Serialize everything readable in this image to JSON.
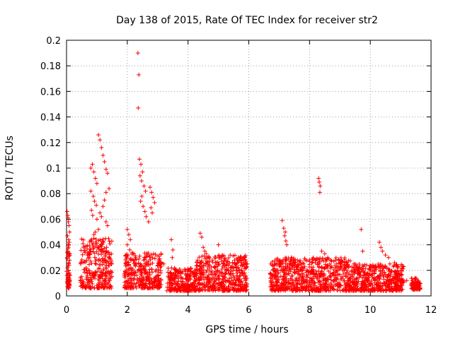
{
  "chart_data": {
    "type": "scatter",
    "title": "Day 138 of 2015, Rate Of TEC Index for receiver str2",
    "xlabel": "GPS time / hours",
    "ylabel": "ROTI / TECUs",
    "xlim": [
      0,
      12
    ],
    "ylim": [
      0,
      0.2
    ],
    "xticks": [
      0,
      2,
      4,
      6,
      8,
      10,
      12
    ],
    "yticks": [
      0,
      0.02,
      0.04,
      0.06,
      0.08,
      0.1,
      0.12,
      0.14,
      0.16,
      0.18,
      0.2
    ],
    "xtick_labels": [
      "0",
      "2",
      "4",
      "6",
      "8",
      "10",
      "12"
    ],
    "ytick_labels": [
      "0",
      "0.02",
      "0.04",
      "0.06",
      "0.08",
      "0.1",
      "0.12",
      "0.14",
      "0.16",
      "0.18",
      "0.2"
    ],
    "grid": true,
    "marker": "+",
    "marker_color": "#ff0000",
    "series": [
      {
        "name": "ROTI",
        "x": [
          0.02,
          0.04,
          0.05,
          0.06,
          0.08,
          0.1,
          0.03,
          0.07,
          0.09,
          0.05,
          0.06,
          0.04,
          0.08,
          0.02,
          0.1,
          0.07,
          0.05,
          0.03,
          0.06,
          0.09,
          0.04,
          0.08,
          0.11,
          0.02,
          0.06,
          0.8,
          1.05,
          1.1,
          1.15,
          1.2,
          1.25,
          1.3,
          1.35,
          1.4,
          1.3,
          1.25,
          1.2,
          1.1,
          1.0,
          1.35,
          0.95,
          0.9,
          0.85,
          0.8,
          0.75,
          1.15,
          1.3,
          1.05,
          0.9,
          1.2,
          1.32,
          1.35,
          1.28,
          1.36,
          1.3,
          1.22,
          1.38,
          1.18,
          1.33,
          1.25,
          0.85,
          0.9,
          0.95,
          1.0,
          0.8,
          0.88,
          0.92,
          0.98,
          0.82,
          0.86,
          2.35,
          2.38,
          2.36,
          2.4,
          2.45,
          2.5,
          2.42,
          2.47,
          2.55,
          2.6,
          2.48,
          2.44,
          2.52,
          2.58,
          2.62,
          2.7,
          2.75,
          2.8,
          2.85,
          2.9,
          2.78,
          2.82,
          2.0,
          2.05,
          2.1,
          2.0,
          2.08,
          2.02,
          2.12,
          2.05,
          3.45,
          3.5,
          3.48,
          3.2,
          3.6,
          3.8,
          4.0,
          4.2,
          4.4,
          4.45,
          4.5,
          4.55,
          4.6,
          4.7,
          4.8,
          4.9,
          5.0,
          5.2,
          5.4,
          5.6,
          5.8,
          5.9,
          5.95,
          6.8,
          7.0,
          7.1,
          7.15,
          7.2,
          7.18,
          7.22,
          7.25,
          7.4,
          7.6,
          7.8,
          8.0,
          8.2,
          8.3,
          8.32,
          8.35,
          8.34,
          8.4,
          8.5,
          8.6,
          8.8,
          9.0,
          9.2,
          9.4,
          9.6,
          9.7,
          9.75,
          9.5,
          9.55,
          9.6,
          9.8,
          10.0,
          10.2,
          10.3,
          10.35,
          10.4,
          10.5,
          10.6,
          10.8,
          10.85,
          10.9,
          11.0,
          11.2,
          11.4,
          11.5,
          11.6
        ],
        "y": [
          0.066,
          0.063,
          0.061,
          0.058,
          0.055,
          0.05,
          0.047,
          0.044,
          0.042,
          0.04,
          0.038,
          0.035,
          0.033,
          0.03,
          0.028,
          0.026,
          0.024,
          0.022,
          0.02,
          0.018,
          0.016,
          0.014,
          0.012,
          0.01,
          0.008,
          0.1,
          0.126,
          0.122,
          0.116,
          0.11,
          0.105,
          0.099,
          0.096,
          0.084,
          0.081,
          0.075,
          0.07,
          0.065,
          0.06,
          0.055,
          0.05,
          0.045,
          0.04,
          0.035,
          0.03,
          0.062,
          0.058,
          0.052,
          0.048,
          0.043,
          0.038,
          0.034,
          0.031,
          0.027,
          0.024,
          0.021,
          0.019,
          0.017,
          0.015,
          0.012,
          0.103,
          0.097,
          0.092,
          0.088,
          0.082,
          0.078,
          0.074,
          0.071,
          0.067,
          0.063,
          0.19,
          0.173,
          0.147,
          0.107,
          0.103,
          0.097,
          0.094,
          0.09,
          0.086,
          0.082,
          0.078,
          0.074,
          0.07,
          0.066,
          0.062,
          0.058,
          0.085,
          0.081,
          0.077,
          0.073,
          0.069,
          0.065,
          0.052,
          0.048,
          0.044,
          0.04,
          0.036,
          0.032,
          0.028,
          0.024,
          0.044,
          0.036,
          0.03,
          0.025,
          0.02,
          0.018,
          0.016,
          0.015,
          0.049,
          0.046,
          0.038,
          0.035,
          0.033,
          0.03,
          0.028,
          0.026,
          0.04,
          0.024,
          0.022,
          0.02,
          0.018,
          0.027,
          0.025,
          0.02,
          0.025,
          0.059,
          0.053,
          0.05,
          0.047,
          0.043,
          0.04,
          0.03,
          0.028,
          0.025,
          0.027,
          0.028,
          0.092,
          0.089,
          0.086,
          0.081,
          0.035,
          0.033,
          0.03,
          0.027,
          0.025,
          0.022,
          0.02,
          0.018,
          0.052,
          0.035,
          0.025,
          0.022,
          0.02,
          0.018,
          0.02,
          0.022,
          0.042,
          0.038,
          0.035,
          0.032,
          0.03,
          0.026,
          0.024,
          0.022,
          0.02,
          0.012,
          0.01,
          0.013,
          0.01
        ]
      }
    ],
    "dense_regions": [
      {
        "x_range": [
          0.0,
          0.12
        ],
        "y_range": [
          0.006,
          0.04
        ]
      },
      {
        "x_range": [
          0.45,
          1.5
        ],
        "y_range": [
          0.006,
          0.045
        ]
      },
      {
        "x_range": [
          1.9,
          3.15
        ],
        "y_range": [
          0.006,
          0.035
        ]
      },
      {
        "x_range": [
          3.3,
          4.25
        ],
        "y_range": [
          0.004,
          0.022
        ]
      },
      {
        "x_range": [
          4.25,
          5.95
        ],
        "y_range": [
          0.004,
          0.032
        ]
      },
      {
        "x_range": [
          6.7,
          9.4
        ],
        "y_range": [
          0.004,
          0.03
        ]
      },
      {
        "x_range": [
          9.4,
          11.1
        ],
        "y_range": [
          0.004,
          0.025
        ]
      },
      {
        "x_range": [
          11.35,
          11.65
        ],
        "y_range": [
          0.005,
          0.014
        ]
      }
    ]
  }
}
